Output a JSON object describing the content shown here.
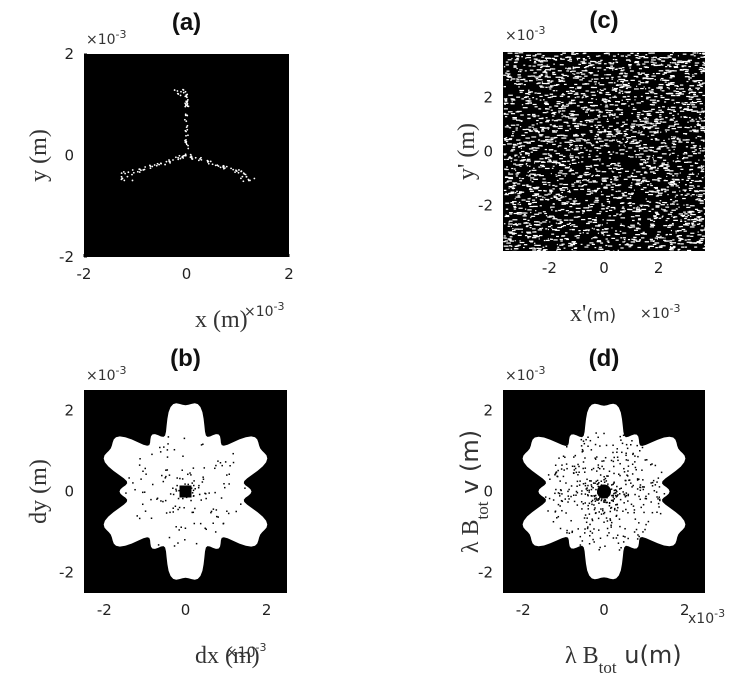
{
  "chart_data": [
    {
      "type": "image",
      "title": "(a)",
      "xlabel": {
        "main": "x (m)"
      },
      "ylabel": {
        "main": "y (m)"
      },
      "x_exponent": {
        "base": "×10",
        "power": "-3"
      },
      "y_exponent": {
        "base": "×10",
        "power": "-3"
      },
      "xlim": [
        -2,
        2
      ],
      "ylim": [
        -2,
        2
      ],
      "xticks": [
        -2,
        0,
        2
      ],
      "yticks": [
        -2,
        0,
        2
      ],
      "pattern": "tripod"
    },
    {
      "type": "image",
      "title": "(b)",
      "xlabel": {
        "main": "dx (m)"
      },
      "ylabel": {
        "main": "dy (m)"
      },
      "x_exponent": {
        "base": "×10",
        "power": "-3"
      },
      "y_exponent": {
        "base": "×10",
        "power": "-3"
      },
      "xlim": [
        -2.5,
        2.5
      ],
      "ylim": [
        -2.5,
        2.5
      ],
      "xticks": [
        -2,
        0,
        2
      ],
      "yticks": [
        -2,
        0,
        2
      ],
      "pattern": "flake"
    },
    {
      "type": "image",
      "title": "(c)",
      "xlabel": {
        "main": "x'",
        "rest": "(m)"
      },
      "ylabel": {
        "main": "y' (m)"
      },
      "x_exponent": {
        "base": "×10",
        "power": "-3"
      },
      "y_exponent": {
        "base": "×10",
        "power": "-3"
      },
      "xlim": [
        -3.7,
        3.7
      ],
      "ylim": [
        -3.7,
        3.7
      ],
      "xticks": [
        -2,
        0,
        2
      ],
      "yticks": [
        -2,
        0,
        2
      ],
      "pattern": "noise"
    },
    {
      "type": "image",
      "title": "(d)",
      "xlabel": {
        "main": "λ B",
        "sub": "tot",
        "rest": " u(m)"
      },
      "ylabel": {
        "main": "λ B",
        "sub": "tot",
        "rest": " v (m)"
      },
      "x_exponent": {
        "base": "x10",
        "power": "-3"
      },
      "y_exponent": {
        "base": "×10",
        "power": "-3"
      },
      "xlim": [
        -2.5,
        2.5
      ],
      "ylim": [
        -2.5,
        2.5
      ],
      "xticks": [
        -2,
        0,
        2
      ],
      "yticks": [
        -2,
        0,
        2
      ],
      "pattern": "speckleflake"
    }
  ]
}
